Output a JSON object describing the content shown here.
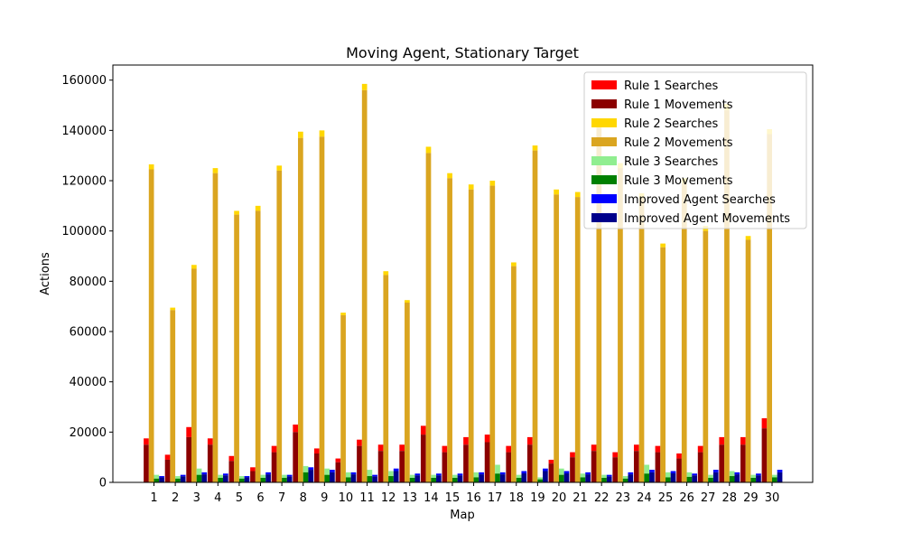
{
  "chart_data": {
    "type": "bar",
    "stacked_pairs": true,
    "title": "Moving Agent, Stationary Target",
    "xlabel": "Map",
    "ylabel": "Actions",
    "ylim": [
      0,
      166000
    ],
    "yticks": [
      0,
      20000,
      40000,
      60000,
      80000,
      100000,
      120000,
      140000,
      160000
    ],
    "ytick_labels": [
      "0",
      "20000",
      "40000",
      "60000",
      "80000",
      "100000",
      "120000",
      "140000",
      "160000"
    ],
    "legend_position": "top-right",
    "categories": [
      "1",
      "2",
      "3",
      "4",
      "5",
      "6",
      "7",
      "8",
      "9",
      "10",
      "11",
      "12",
      "13",
      "14",
      "15",
      "16",
      "17",
      "18",
      "19",
      "20",
      "21",
      "22",
      "23",
      "24",
      "25",
      "26",
      "27",
      "28",
      "29",
      "30"
    ],
    "groups": [
      {
        "name": "Rule 1",
        "searches_color": "#ff0000",
        "movements_color": "#8b0000",
        "searches_label": "Rule 1 Searches",
        "movements_label": "Rule 1 Movements",
        "totals": [
          17500,
          11000,
          22000,
          17500,
          10500,
          6000,
          14500,
          23000,
          13500,
          9500,
          17000,
          15000,
          15000,
          22500,
          14500,
          18000,
          19000,
          14500,
          18000,
          9000,
          12000,
          15000,
          12000,
          15000,
          14500,
          11500,
          14500,
          18000,
          18000,
          25500
        ],
        "movements": [
          15000,
          9000,
          18000,
          15000,
          8500,
          4500,
          12000,
          20000,
          11500,
          8000,
          14500,
          12500,
          12500,
          19000,
          12000,
          15000,
          16000,
          12000,
          15000,
          7500,
          10000,
          12500,
          10000,
          12500,
          12000,
          9500,
          12000,
          15000,
          15000,
          21500
        ]
      },
      {
        "name": "Rule 2",
        "searches_color": "#ffd700",
        "movements_color": "#daa520",
        "searches_label": "Rule 2 Searches",
        "movements_label": "Rule 2 Movements",
        "totals": [
          126500,
          69500,
          86500,
          125000,
          108000,
          110000,
          126000,
          139500,
          140000,
          67500,
          158500,
          84000,
          72500,
          133500,
          123000,
          118500,
          120000,
          87500,
          134000,
          116500,
          115500,
          143000,
          127000,
          115000,
          95000,
          121000,
          102000,
          150500,
          98000,
          140500
        ],
        "movements": [
          124500,
          68500,
          85000,
          123000,
          106500,
          108000,
          124000,
          137000,
          137500,
          66500,
          156000,
          82500,
          71500,
          131000,
          121000,
          116500,
          118000,
          86000,
          132000,
          114500,
          113500,
          141000,
          125000,
          113000,
          93500,
          119000,
          100000,
          148000,
          96500,
          138500
        ]
      },
      {
        "name": "Rule 3",
        "searches_color": "#90ee90",
        "movements_color": "#008000",
        "searches_label": "Rule 3 Searches",
        "movements_label": "Rule 3 Movements",
        "totals": [
          3000,
          2500,
          5500,
          3000,
          2500,
          3000,
          3000,
          6500,
          5500,
          4000,
          5000,
          4500,
          3000,
          3000,
          3000,
          4000,
          7000,
          3000,
          2000,
          5500,
          3500,
          3000,
          2500,
          7000,
          4000,
          4000,
          3000,
          4500,
          3000,
          3000
        ],
        "movements": [
          1500,
          1500,
          3000,
          1800,
          1500,
          1800,
          1800,
          4000,
          3000,
          2000,
          2500,
          2500,
          1800,
          1800,
          1800,
          2000,
          3500,
          1800,
          1200,
          3000,
          2000,
          1800,
          1500,
          3500,
          2000,
          2200,
          1800,
          2500,
          1800,
          2000
        ]
      },
      {
        "name": "Improved Agent",
        "searches_color": "#0000ff",
        "movements_color": "#00008b",
        "searches_label": "Improved Agent Searches",
        "movements_label": "Improved Agent Movements",
        "totals": [
          2500,
          3000,
          4000,
          3500,
          2500,
          4000,
          3000,
          6000,
          5000,
          4000,
          3000,
          5500,
          3500,
          3500,
          3500,
          4000,
          4000,
          4500,
          5500,
          4500,
          4000,
          3000,
          4000,
          5000,
          4500,
          3500,
          5000,
          4000,
          3500,
          5000
        ],
        "movements": [
          2000,
          2400,
          3200,
          2800,
          2000,
          3200,
          2400,
          5000,
          4000,
          3200,
          2400,
          4500,
          2800,
          2800,
          2800,
          3200,
          3200,
          3600,
          4500,
          3600,
          3200,
          2400,
          3200,
          4000,
          3600,
          2800,
          4000,
          3200,
          2800,
          4000
        ]
      }
    ],
    "legend": [
      {
        "label": "Rule 1 Searches",
        "color": "#ff0000"
      },
      {
        "label": "Rule 1 Movements",
        "color": "#8b0000"
      },
      {
        "label": "Rule 2 Searches",
        "color": "#ffd700"
      },
      {
        "label": "Rule 2 Movements",
        "color": "#daa520"
      },
      {
        "label": "Rule 3 Searches",
        "color": "#90ee90"
      },
      {
        "label": "Rule 3 Movements",
        "color": "#008000"
      },
      {
        "label": "Improved Agent Searches",
        "color": "#0000ff"
      },
      {
        "label": "Improved Agent Movements",
        "color": "#00008b"
      }
    ]
  }
}
